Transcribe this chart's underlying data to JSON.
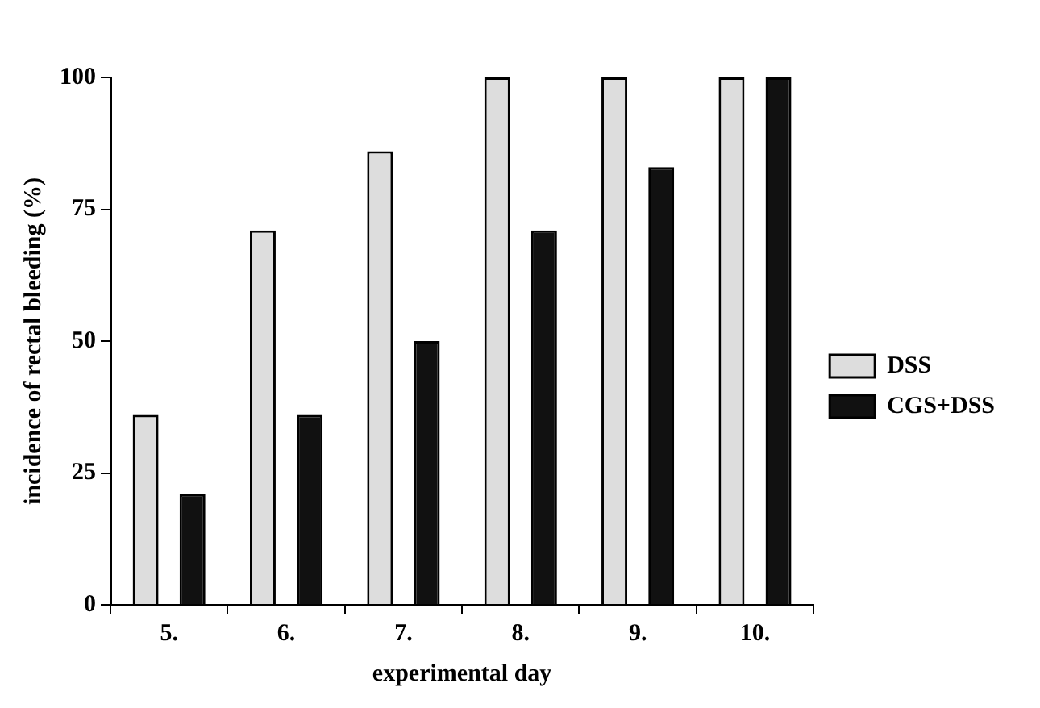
{
  "chart_data": {
    "type": "bar",
    "xlabel": "experimental day",
    "ylabel": "incidence of rectal bleeding (%)",
    "categories": [
      "5.",
      "6.",
      "7.",
      "8.",
      "9.",
      "10."
    ],
    "series": [
      {
        "name": "DSS",
        "color": "#dddddd",
        "values": [
          36,
          71,
          86,
          100,
          100,
          100
        ]
      },
      {
        "name": "CGS+DSS",
        "color": "#111111",
        "values": [
          21,
          36,
          50,
          71,
          83,
          100
        ]
      }
    ],
    "ylim": [
      0,
      100
    ],
    "yticks": [
      0,
      25,
      50,
      75,
      100
    ],
    "grid": false,
    "legend": "right"
  }
}
